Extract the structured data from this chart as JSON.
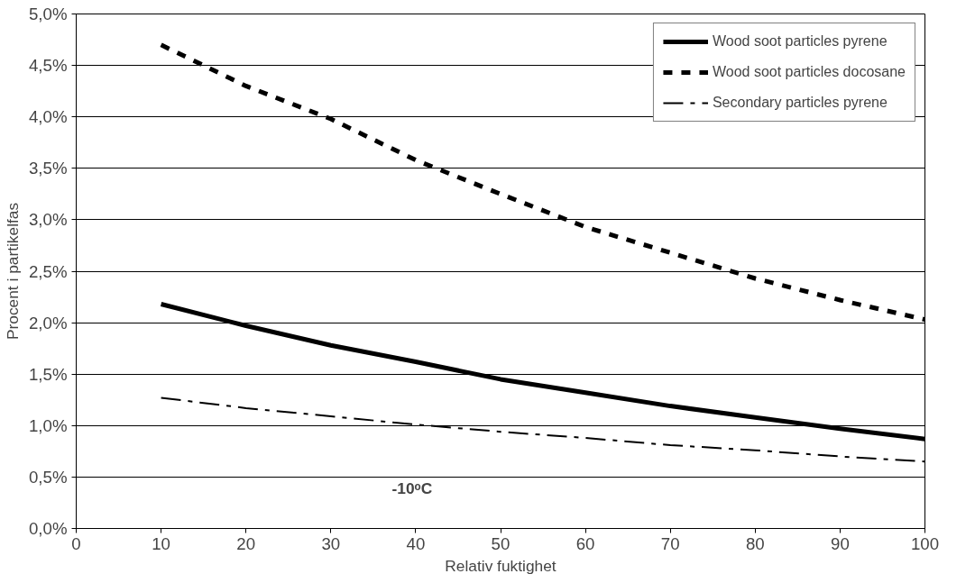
{
  "chart_data": {
    "type": "line",
    "xlabel": "Relativ fuktighet",
    "ylabel": "Procent i partikelfas",
    "annotations": [
      "-10ᵒC"
    ],
    "x": [
      10,
      20,
      30,
      40,
      50,
      60,
      70,
      80,
      90,
      100
    ],
    "series": [
      {
        "name": "Wood soot particles pyrene",
        "color": "#000000",
        "line_style": "solid",
        "values": [
          2.18,
          1.97,
          1.78,
          1.62,
          1.45,
          1.32,
          1.19,
          1.08,
          0.97,
          0.87
        ]
      },
      {
        "name": "Wood soot particles docosane",
        "color": "#000000",
        "line_style": "dashed",
        "values": [
          4.7,
          4.3,
          3.98,
          3.58,
          3.25,
          2.93,
          2.68,
          2.43,
          2.22,
          2.03
        ]
      },
      {
        "name": "Secondary particles pyrene",
        "color": "#000000",
        "line_style": "dashdot",
        "values": [
          1.27,
          1.17,
          1.09,
          1.01,
          0.94,
          0.88,
          0.81,
          0.76,
          0.7,
          0.65
        ]
      }
    ],
    "xlim": [
      0,
      100
    ],
    "xticks": [
      0,
      10,
      20,
      30,
      40,
      50,
      60,
      70,
      80,
      90,
      100
    ],
    "ylim": [
      0,
      5
    ],
    "yticks": [
      {
        "value": 0,
        "label": "0,0%"
      },
      {
        "value": 0.5,
        "label": "0,5%"
      },
      {
        "value": 1,
        "label": "1,0%"
      },
      {
        "value": 1.5,
        "label": "1,5%"
      },
      {
        "value": 2,
        "label": "2,0%"
      },
      {
        "value": 2.5,
        "label": "2,5%"
      },
      {
        "value": 3,
        "label": "3,0%"
      },
      {
        "value": 3.5,
        "label": "3,5%"
      },
      {
        "value": 4,
        "label": "4,0%"
      },
      {
        "value": 4.5,
        "label": "4,5%"
      },
      {
        "value": 5,
        "label": "5,0%"
      }
    ],
    "grid": "y",
    "legend": "top right",
    "marker": "none"
  }
}
